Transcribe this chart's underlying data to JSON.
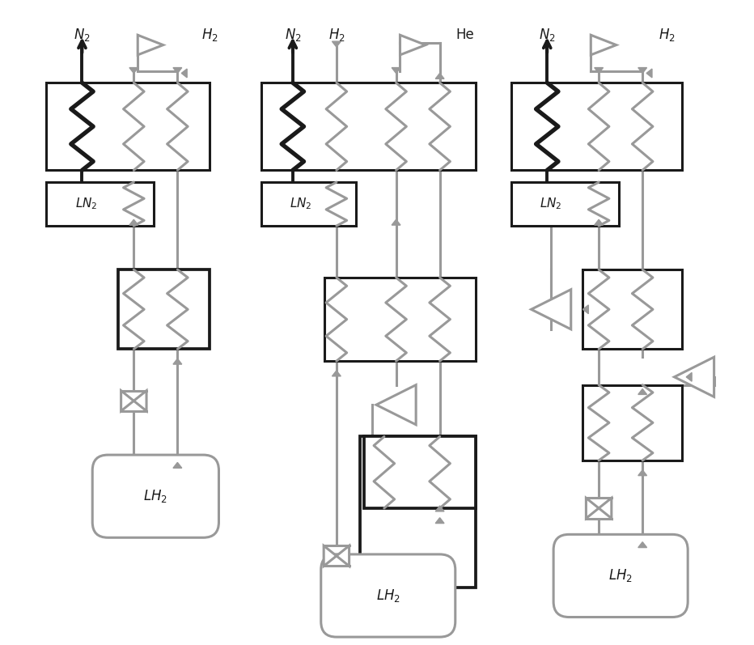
{
  "bg": "#ffffff",
  "dk": "#1a1a1a",
  "gy": "#999999",
  "ldk": 2.8,
  "lgy": 2.2,
  "lbx": 2.2
}
